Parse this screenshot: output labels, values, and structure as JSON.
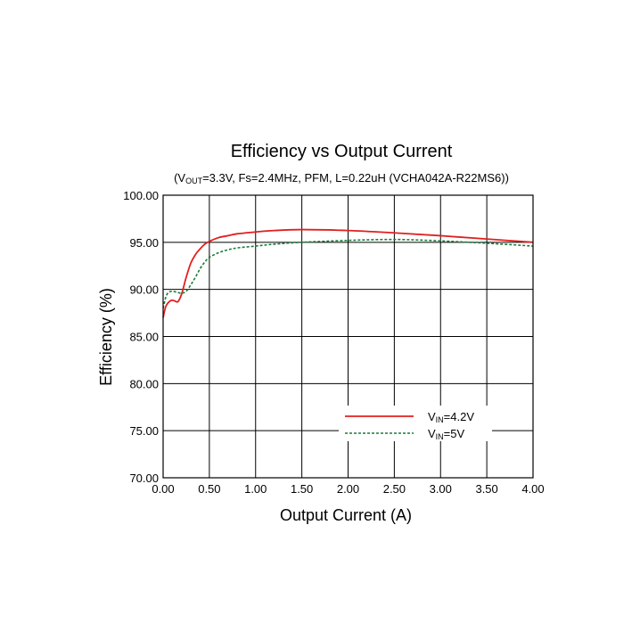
{
  "chart_data": {
    "type": "line",
    "title": "Efficiency vs Output Current",
    "subtitle": {
      "prefix": "(V",
      "prefix_sub": "OUT",
      "rest": "=3.3V, Fs=2.4MHz, PFM, L=0.22uH (VCHA042A-R22MS6))"
    },
    "xlabel": "Output Current (A)",
    "ylabel": "Efficiency (%)",
    "xlim": [
      0,
      4
    ],
    "ylim": [
      70,
      100
    ],
    "x_ticks": [
      "0.00",
      "0.50",
      "1.00",
      "1.50",
      "2.00",
      "2.50",
      "3.00",
      "3.50",
      "4.00"
    ],
    "y_ticks": [
      "100.00",
      "95.00",
      "90.00",
      "85.00",
      "80.00",
      "75.00",
      "70.00"
    ],
    "grid": true,
    "legend_position": "bottom-right",
    "series": [
      {
        "name": "VIN=4.2V",
        "legend": {
          "base": "V",
          "sub": "IN",
          "rest": "=4.2V"
        },
        "color": "#e02020",
        "style": "solid",
        "x": [
          0.0,
          0.03,
          0.08,
          0.12,
          0.16,
          0.2,
          0.25,
          0.3,
          0.35,
          0.4,
          0.45,
          0.5,
          0.6,
          0.7,
          0.8,
          1.0,
          1.2,
          1.5,
          2.0,
          2.5,
          3.0,
          3.5,
          4.0
        ],
        "y": [
          87.0,
          88.2,
          88.8,
          88.8,
          88.7,
          89.5,
          91.3,
          92.8,
          93.7,
          94.3,
          94.8,
          95.1,
          95.5,
          95.7,
          95.9,
          96.1,
          96.25,
          96.35,
          96.25,
          96.0,
          95.7,
          95.35,
          95.0
        ]
      },
      {
        "name": "VIN=5V",
        "legend": {
          "base": "V",
          "sub": "IN",
          "rest": "=5V"
        },
        "color": "#1a7a3a",
        "style": "dashed",
        "x": [
          0.0,
          0.03,
          0.06,
          0.1,
          0.15,
          0.2,
          0.25,
          0.3,
          0.35,
          0.4,
          0.45,
          0.5,
          0.6,
          0.7,
          0.8,
          1.0,
          1.2,
          1.5,
          2.0,
          2.5,
          3.0,
          3.5,
          4.0
        ],
        "y": [
          88.0,
          89.2,
          89.7,
          89.8,
          89.7,
          89.6,
          89.8,
          90.5,
          91.3,
          92.2,
          92.9,
          93.4,
          93.9,
          94.2,
          94.4,
          94.6,
          94.8,
          95.0,
          95.2,
          95.3,
          95.15,
          94.9,
          94.6
        ]
      }
    ]
  }
}
